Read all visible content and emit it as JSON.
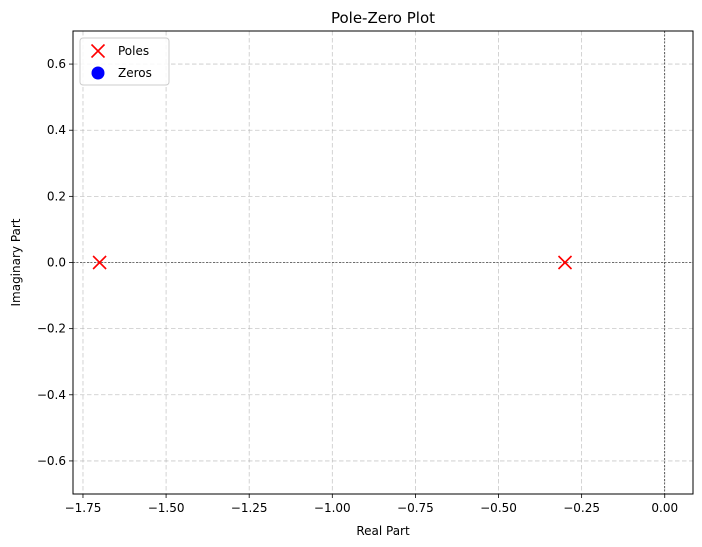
{
  "chart_data": {
    "type": "scatter",
    "title": "Pole-Zero Plot",
    "xlabel": "Real Part",
    "ylabel": "Imaginary Part",
    "xlim": [
      -1.78,
      0.085
    ],
    "ylim": [
      -0.7,
      0.7
    ],
    "xticks": [
      -1.75,
      -1.5,
      -1.25,
      -1.0,
      -0.75,
      -0.5,
      -0.25,
      0.0
    ],
    "xtick_labels": [
      "−1.75",
      "−1.50",
      "−1.25",
      "−1.00",
      "−0.75",
      "−0.50",
      "−0.25",
      "0.00"
    ],
    "yticks": [
      -0.6,
      -0.4,
      -0.2,
      0.0,
      0.2,
      0.4,
      0.6
    ],
    "ytick_labels": [
      "−0.6",
      "−0.4",
      "−0.2",
      "0.0",
      "0.2",
      "0.4",
      "0.6"
    ],
    "grid": true,
    "reference_lines": {
      "x": 0,
      "y": 0
    },
    "legend": "top-left",
    "series": [
      {
        "name": "Poles",
        "marker": "x",
        "color": "#ff0000",
        "points": [
          {
            "x": -1.7,
            "y": 0.0
          },
          {
            "x": -0.3,
            "y": 0.0
          }
        ]
      },
      {
        "name": "Zeros",
        "marker": "o",
        "color": "#0000ff",
        "points": []
      }
    ]
  }
}
